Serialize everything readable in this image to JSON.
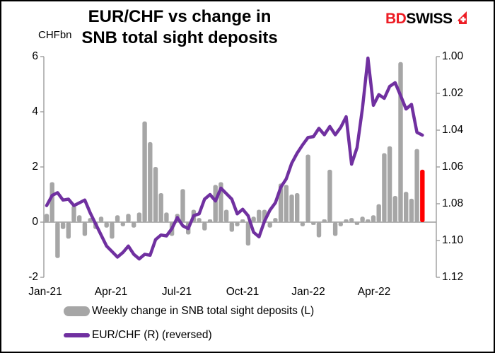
{
  "header": {
    "title_line1": "EUR/CHF vs change in",
    "title_line2": "SNB total sight deposits",
    "logo_bd": "BD",
    "logo_swiss": "SWISS"
  },
  "axes": {
    "left_unit_label": "CHFbn",
    "left_ticks": [
      "6",
      "4",
      "2",
      "0",
      "-2"
    ],
    "right_ticks": [
      "1.00",
      "1.02",
      "1.04",
      "1.06",
      "1.08",
      "1.10",
      "1.12"
    ],
    "x_ticks": [
      "Jan-21",
      "Apr-21",
      "Jul-21",
      "Oct-21",
      "Jan-22",
      "Apr-22"
    ]
  },
  "legend": {
    "bars_label": "Weekly change in SNB total sight deposits (L)",
    "line_label": "EUR/CHF (R) (reversed)"
  },
  "colors": {
    "bar": "#A6A6A6",
    "bar_highlight": "#FF0000",
    "line": "#7030A0",
    "axis": "#9C9C9C",
    "logo_red": "#ED1C24",
    "text": "#000000"
  },
  "chart_data": {
    "type": "combo",
    "title": "EUR/CHF vs change in SNB total sight deposits",
    "x_frequency": "weekly",
    "x_range": [
      "Jan-21",
      "May-22"
    ],
    "x_tick_labels": [
      "Jan-21",
      "Apr-21",
      "Jul-21",
      "Oct-21",
      "Jan-22",
      "Apr-22"
    ],
    "left_axis": {
      "label": "CHFbn",
      "range": [
        -2,
        6
      ],
      "ticks": [
        6,
        4,
        2,
        0,
        -2
      ]
    },
    "right_axis": {
      "range": [
        1.0,
        1.12
      ],
      "ticks": [
        1.0,
        1.02,
        1.04,
        1.06,
        1.08,
        1.1,
        1.12
      ],
      "reversed": true
    },
    "grid": "zero-line-only",
    "legend_position": "bottom-left",
    "highlight_last_bar": true,
    "series": [
      {
        "name": "Weekly change in SNB total sight deposits (L)",
        "type": "bar",
        "axis": "left",
        "values": [
          0.3,
          1.45,
          -1.3,
          -0.25,
          -0.6,
          0.6,
          0.25,
          -0.5,
          0.15,
          -0.25,
          0.2,
          -0.2,
          -0.6,
          0.25,
          -0.15,
          0.3,
          -0.2,
          0.35,
          3.65,
          2.9,
          2.0,
          1.05,
          0.35,
          -0.5,
          0.3,
          1.2,
          -0.45,
          0.45,
          0.15,
          -0.3,
          0.1,
          1.35,
          1.45,
          0.45,
          -0.35,
          -0.15,
          0.1,
          -0.85,
          0.2,
          0.45,
          0.45,
          -0.2,
          0.15,
          1.4,
          1.35,
          1.0,
          1.05,
          -0.15,
          2.45,
          -0.1,
          -0.55,
          0.1,
          1.9,
          -0.5,
          -0.15,
          0.1,
          0.15,
          -0.1,
          0.2,
          0.1,
          0.25,
          0.65,
          2.5,
          2.75,
          0.95,
          5.8,
          1.1,
          0.85,
          2.65,
          1.9
        ]
      },
      {
        "name": "EUR/CHF (R) (reversed)",
        "type": "line",
        "axis": "right",
        "values": [
          1.081,
          1.0755,
          1.074,
          1.078,
          1.0775,
          1.081,
          1.0795,
          1.078,
          1.085,
          1.091,
          1.097,
          1.103,
          1.106,
          1.109,
          1.1065,
          1.103,
          1.1075,
          1.11,
          1.1075,
          1.108,
          1.0995,
          1.097,
          1.0975,
          1.0935,
          1.0875,
          1.092,
          1.0935,
          1.0865,
          1.0855,
          1.0775,
          1.075,
          1.0785,
          1.0715,
          1.0745,
          1.0775,
          1.0855,
          1.083,
          1.0865,
          1.0955,
          1.098,
          1.0895,
          1.0835,
          1.0795,
          1.071,
          1.0665,
          1.058,
          1.0525,
          1.048,
          1.044,
          1.0435,
          1.039,
          1.0425,
          1.038,
          1.0425,
          1.0385,
          1.0327,
          1.0585,
          1.0495,
          1.028,
          1.0008,
          1.0265,
          1.0207,
          1.0227,
          1.0162,
          1.0142,
          1.0212,
          1.0285,
          1.026,
          1.0412,
          1.0427
        ]
      }
    ]
  }
}
